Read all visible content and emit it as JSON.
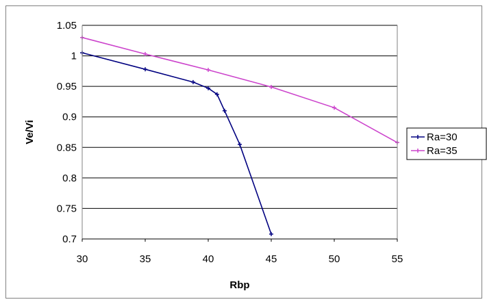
{
  "chart_data": {
    "type": "line",
    "title": "",
    "xlabel": "Rbp",
    "ylabel": "Ve/Vi",
    "xlim": [
      30,
      55
    ],
    "ylim": [
      0.7,
      1.05
    ],
    "x_ticks": [
      30,
      35,
      40,
      45,
      50,
      55
    ],
    "y_ticks": [
      0.7,
      0.75,
      0.8,
      0.85,
      0.9,
      0.95,
      1,
      1.05
    ],
    "y_tick_labels": [
      "0.7",
      "0.75",
      "0.8",
      "0.85",
      "0.9",
      "0.95",
      "1",
      "1.05"
    ],
    "grid": "horizontal",
    "legend_position": "right",
    "series": [
      {
        "name": "Ra=30",
        "color": "#000080",
        "marker": "plus",
        "x": [
          30,
          35,
          38.8,
          40,
          40.7,
          41.3,
          42.5,
          45
        ],
        "y": [
          1.005,
          0.978,
          0.957,
          0.947,
          0.937,
          0.91,
          0.855,
          0.708
        ]
      },
      {
        "name": "Ra=35",
        "color": "#cc44cc",
        "marker": "plus",
        "x": [
          30,
          35,
          40,
          45,
          50,
          55
        ],
        "y": [
          1.03,
          1.003,
          0.977,
          0.949,
          0.915,
          0.858
        ]
      }
    ]
  }
}
